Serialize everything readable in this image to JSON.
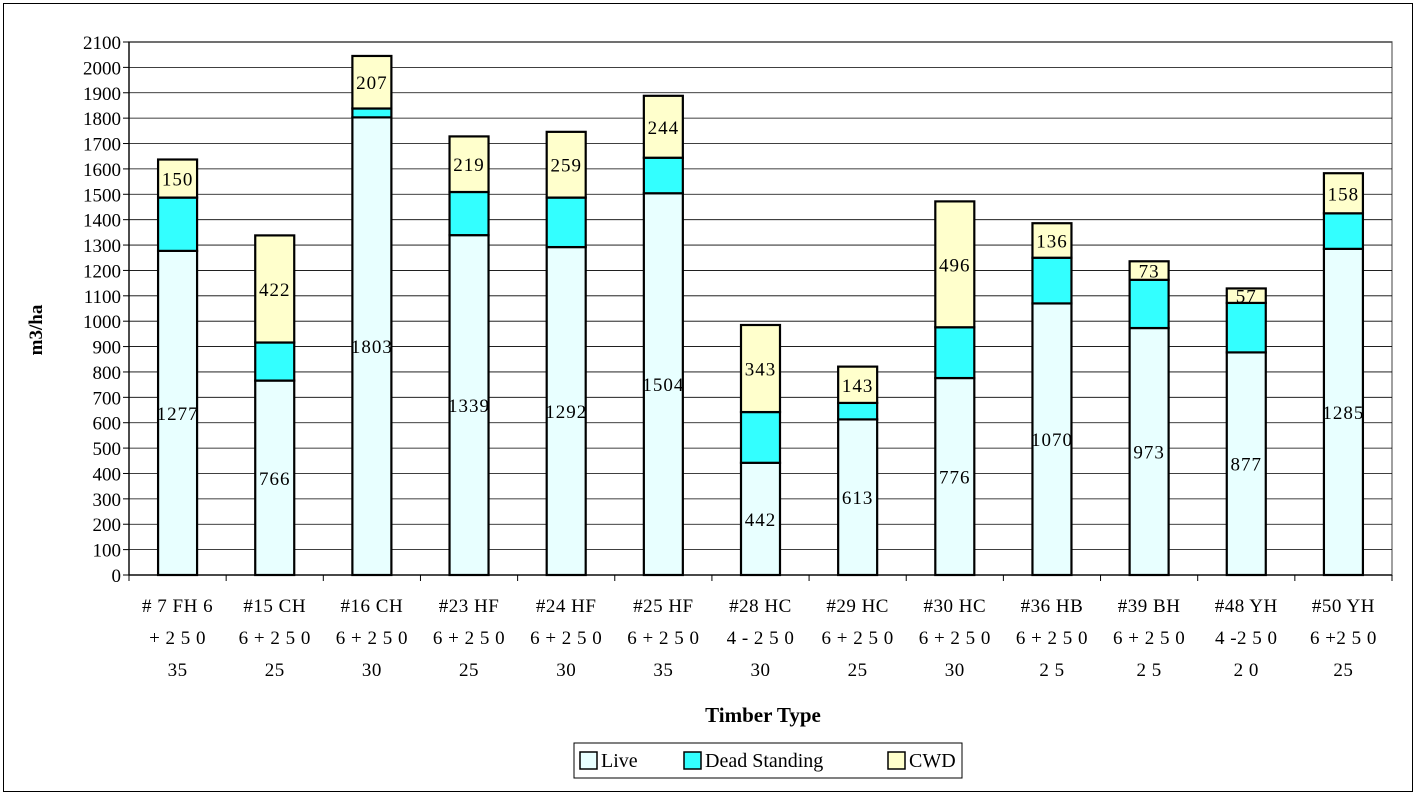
{
  "chart_data": {
    "type": "bar",
    "stacked": true,
    "title": "",
    "xlabel": "Timber Type",
    "ylabel": "m3/ha",
    "ylim": [
      0,
      2100
    ],
    "ytick_step": 100,
    "grid": true,
    "legend_position": "bottom",
    "categories": [
      [
        "# 7 FH 6",
        "+ 2 5 0",
        "35"
      ],
      [
        "#15 CH",
        "6 + 2 5 0",
        "25"
      ],
      [
        "#16 CH",
        "6 + 2 5 0",
        "30"
      ],
      [
        "#23 HF",
        "6 + 2 5 0",
        "25"
      ],
      [
        "#24 HF",
        "6 + 2 5 0",
        "30"
      ],
      [
        "#25 HF",
        "6 + 2 5 0",
        "35"
      ],
      [
        "#28 HC",
        "4 - 2 5 0",
        "30"
      ],
      [
        "#29 HC",
        "6 + 2 5 0",
        "25"
      ],
      [
        "#30 HC",
        "6 + 2 5 0",
        "30"
      ],
      [
        "#36 HB",
        "6 + 2 5 0",
        "2 5"
      ],
      [
        "#39 BH",
        "6 + 2 5 0",
        "2 5"
      ],
      [
        "#48 YH",
        "4 -2 5 0",
        "2 0"
      ],
      [
        "#50 YH",
        "6 +2 5 0",
        "25"
      ]
    ],
    "series": [
      {
        "name": "Live",
        "color": "#e8ffff",
        "values": [
          1277,
          766,
          1803,
          1339,
          1292,
          1504,
          442,
          613,
          776,
          1070,
          973,
          877,
          1285
        ],
        "labels": [
          "1277",
          "766",
          "1803",
          "1339",
          "1292",
          "1504",
          "442",
          "613",
          "776",
          "1070",
          "973",
          "877",
          "1285"
        ]
      },
      {
        "name": "Dead Standing",
        "color": "#33ffff",
        "values": [
          210,
          150,
          35,
          170,
          195,
          140,
          200,
          65,
          200,
          180,
          190,
          195,
          140
        ],
        "labels": []
      },
      {
        "name": "CWD",
        "color": "#ffffcc",
        "values": [
          150,
          422,
          207,
          219,
          259,
          244,
          343,
          143,
          496,
          136,
          73,
          57,
          158
        ],
        "labels": [
          "150",
          "422",
          "207",
          "219",
          "259",
          "244",
          "343",
          "143",
          "496",
          "136",
          "73",
          "57",
          "158"
        ]
      }
    ]
  }
}
